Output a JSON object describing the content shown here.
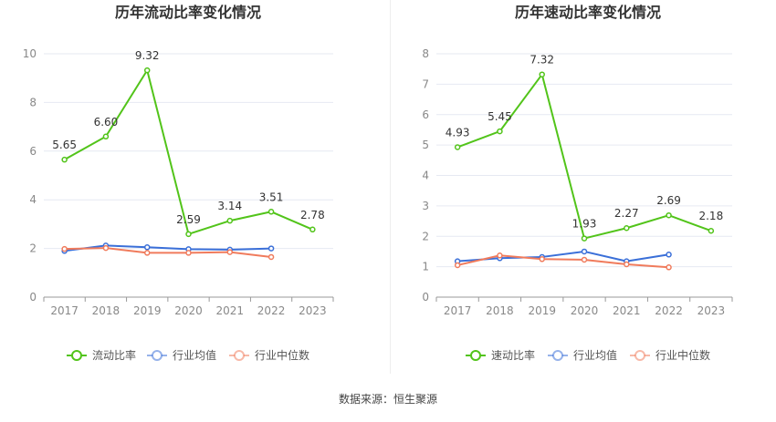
{
  "chart_data": [
    {
      "type": "line",
      "title": "历年流动比率变化情况",
      "categories": [
        "2017",
        "2018",
        "2019",
        "2020",
        "2021",
        "2022",
        "2023"
      ],
      "ylim": [
        0,
        10
      ],
      "yticks": [
        0,
        2,
        4,
        6,
        8,
        10
      ],
      "grid": true,
      "legend_position": "bottom",
      "series": [
        {
          "name": "流动比率",
          "color": "#52c41a",
          "values": [
            5.65,
            6.6,
            9.32,
            2.59,
            3.14,
            3.51,
            2.78
          ],
          "labels": [
            "5.65",
            "6.60",
            "9.32",
            "2.59",
            "3.14",
            "3.51",
            "2.78"
          ]
        },
        {
          "name": "行业均值",
          "color": "#3a6fd8",
          "values": [
            1.9,
            2.12,
            2.05,
            1.97,
            1.95,
            2.0,
            null
          ]
        },
        {
          "name": "行业中位数",
          "color": "#f07b5c",
          "values": [
            1.98,
            2.02,
            1.82,
            1.82,
            1.85,
            1.65,
            null
          ]
        }
      ]
    },
    {
      "type": "line",
      "title": "历年速动比率变化情况",
      "categories": [
        "2017",
        "2018",
        "2019",
        "2020",
        "2021",
        "2022",
        "2023"
      ],
      "ylim": [
        0,
        8
      ],
      "yticks": [
        0,
        1,
        2,
        3,
        4,
        5,
        6,
        7,
        8
      ],
      "grid": true,
      "legend_position": "bottom",
      "series": [
        {
          "name": "速动比率",
          "color": "#52c41a",
          "values": [
            4.93,
            5.45,
            7.32,
            1.93,
            2.27,
            2.69,
            2.18
          ],
          "labels": [
            "4.93",
            "5.45",
            "7.32",
            "1.93",
            "2.27",
            "2.69",
            "2.18"
          ]
        },
        {
          "name": "行业均值",
          "color": "#3a6fd8",
          "values": [
            1.18,
            1.28,
            1.32,
            1.5,
            1.18,
            1.4,
            null
          ]
        },
        {
          "name": "行业中位数",
          "color": "#f07b5c",
          "values": [
            1.05,
            1.37,
            1.25,
            1.23,
            1.08,
            0.98,
            null
          ]
        }
      ]
    }
  ],
  "footer": {
    "source": "数据来源：恒生聚源"
  }
}
